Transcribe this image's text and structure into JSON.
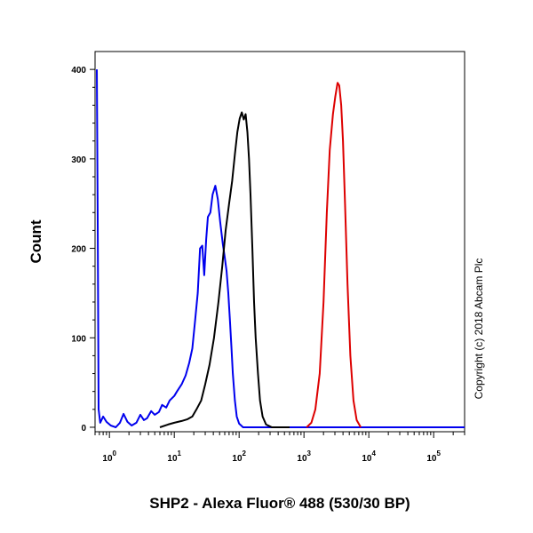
{
  "chart_data": {
    "type": "line",
    "title": "",
    "xlabel": "SHP2 - Alexa Fluor® 488 (530/30 BP)",
    "ylabel": "Count",
    "xscale": "log",
    "xlim": [
      0.6,
      300000
    ],
    "ylim": [
      -5,
      420
    ],
    "yticks": [
      0,
      100,
      200,
      300,
      400
    ],
    "xticks": [
      {
        "base": "10",
        "exp": "0",
        "value": 1
      },
      {
        "base": "10",
        "exp": "1",
        "value": 10
      },
      {
        "base": "10",
        "exp": "2",
        "value": 100
      },
      {
        "base": "10",
        "exp": "3",
        "value": 1000
      },
      {
        "base": "10",
        "exp": "4",
        "value": 10000
      },
      {
        "base": "10",
        "exp": "5",
        "value": 100000
      }
    ],
    "annotation": "Copyright (c) 2018 Abcam Plc",
    "series": [
      {
        "color": "#0000ee",
        "points": [
          [
            0.64,
            400
          ],
          [
            0.66,
            230
          ],
          [
            0.68,
            20
          ],
          [
            0.72,
            5
          ],
          [
            0.8,
            12
          ],
          [
            0.9,
            6
          ],
          [
            1.05,
            2
          ],
          [
            1.25,
            0
          ],
          [
            1.45,
            5
          ],
          [
            1.65,
            15
          ],
          [
            1.9,
            6
          ],
          [
            2.2,
            2
          ],
          [
            2.6,
            5
          ],
          [
            3.0,
            14
          ],
          [
            3.4,
            8
          ],
          [
            3.8,
            10
          ],
          [
            4.4,
            18
          ],
          [
            5.0,
            14
          ],
          [
            5.8,
            17
          ],
          [
            6.5,
            25
          ],
          [
            7.5,
            22
          ],
          [
            8.5,
            30
          ],
          [
            10,
            35
          ],
          [
            11,
            40
          ],
          [
            13,
            48
          ],
          [
            15,
            58
          ],
          [
            17,
            72
          ],
          [
            19,
            88
          ],
          [
            21,
            120
          ],
          [
            23,
            150
          ],
          [
            25,
            200
          ],
          [
            27,
            203
          ],
          [
            29,
            170
          ],
          [
            31,
            210
          ],
          [
            33,
            235
          ],
          [
            36,
            240
          ],
          [
            39,
            260
          ],
          [
            43,
            270
          ],
          [
            47,
            255
          ],
          [
            51,
            230
          ],
          [
            56,
            205
          ],
          [
            60,
            190
          ],
          [
            64,
            175
          ],
          [
            68,
            150
          ],
          [
            72,
            120
          ],
          [
            76,
            90
          ],
          [
            80,
            60
          ],
          [
            86,
            30
          ],
          [
            92,
            12
          ],
          [
            100,
            4
          ],
          [
            115,
            0
          ],
          [
            300000,
            0
          ]
        ]
      },
      {
        "color": "#000000",
        "points": [
          [
            6,
            0
          ],
          [
            8,
            3
          ],
          [
            10,
            5
          ],
          [
            13,
            7
          ],
          [
            16,
            9
          ],
          [
            19,
            12
          ],
          [
            22,
            20
          ],
          [
            26,
            30
          ],
          [
            30,
            48
          ],
          [
            35,
            70
          ],
          [
            41,
            100
          ],
          [
            48,
            140
          ],
          [
            55,
            180
          ],
          [
            62,
            220
          ],
          [
            70,
            250
          ],
          [
            78,
            275
          ],
          [
            86,
            305
          ],
          [
            94,
            330
          ],
          [
            102,
            345
          ],
          [
            110,
            352
          ],
          [
            118,
            344
          ],
          [
            126,
            350
          ],
          [
            134,
            330
          ],
          [
            142,
            300
          ],
          [
            150,
            260
          ],
          [
            160,
            200
          ],
          [
            170,
            140
          ],
          [
            180,
            100
          ],
          [
            195,
            60
          ],
          [
            210,
            30
          ],
          [
            230,
            12
          ],
          [
            260,
            3
          ],
          [
            320,
            0
          ],
          [
            600,
            0
          ]
        ]
      },
      {
        "color": "#dd0000",
        "points": [
          [
            1100,
            0
          ],
          [
            1300,
            5
          ],
          [
            1500,
            20
          ],
          [
            1750,
            60
          ],
          [
            2000,
            140
          ],
          [
            2250,
            240
          ],
          [
            2500,
            310
          ],
          [
            2800,
            350
          ],
          [
            3050,
            370
          ],
          [
            3300,
            385
          ],
          [
            3500,
            382
          ],
          [
            3750,
            360
          ],
          [
            4000,
            320
          ],
          [
            4300,
            250
          ],
          [
            4700,
            160
          ],
          [
            5200,
            80
          ],
          [
            5800,
            30
          ],
          [
            6500,
            8
          ],
          [
            7500,
            0
          ]
        ]
      }
    ]
  }
}
